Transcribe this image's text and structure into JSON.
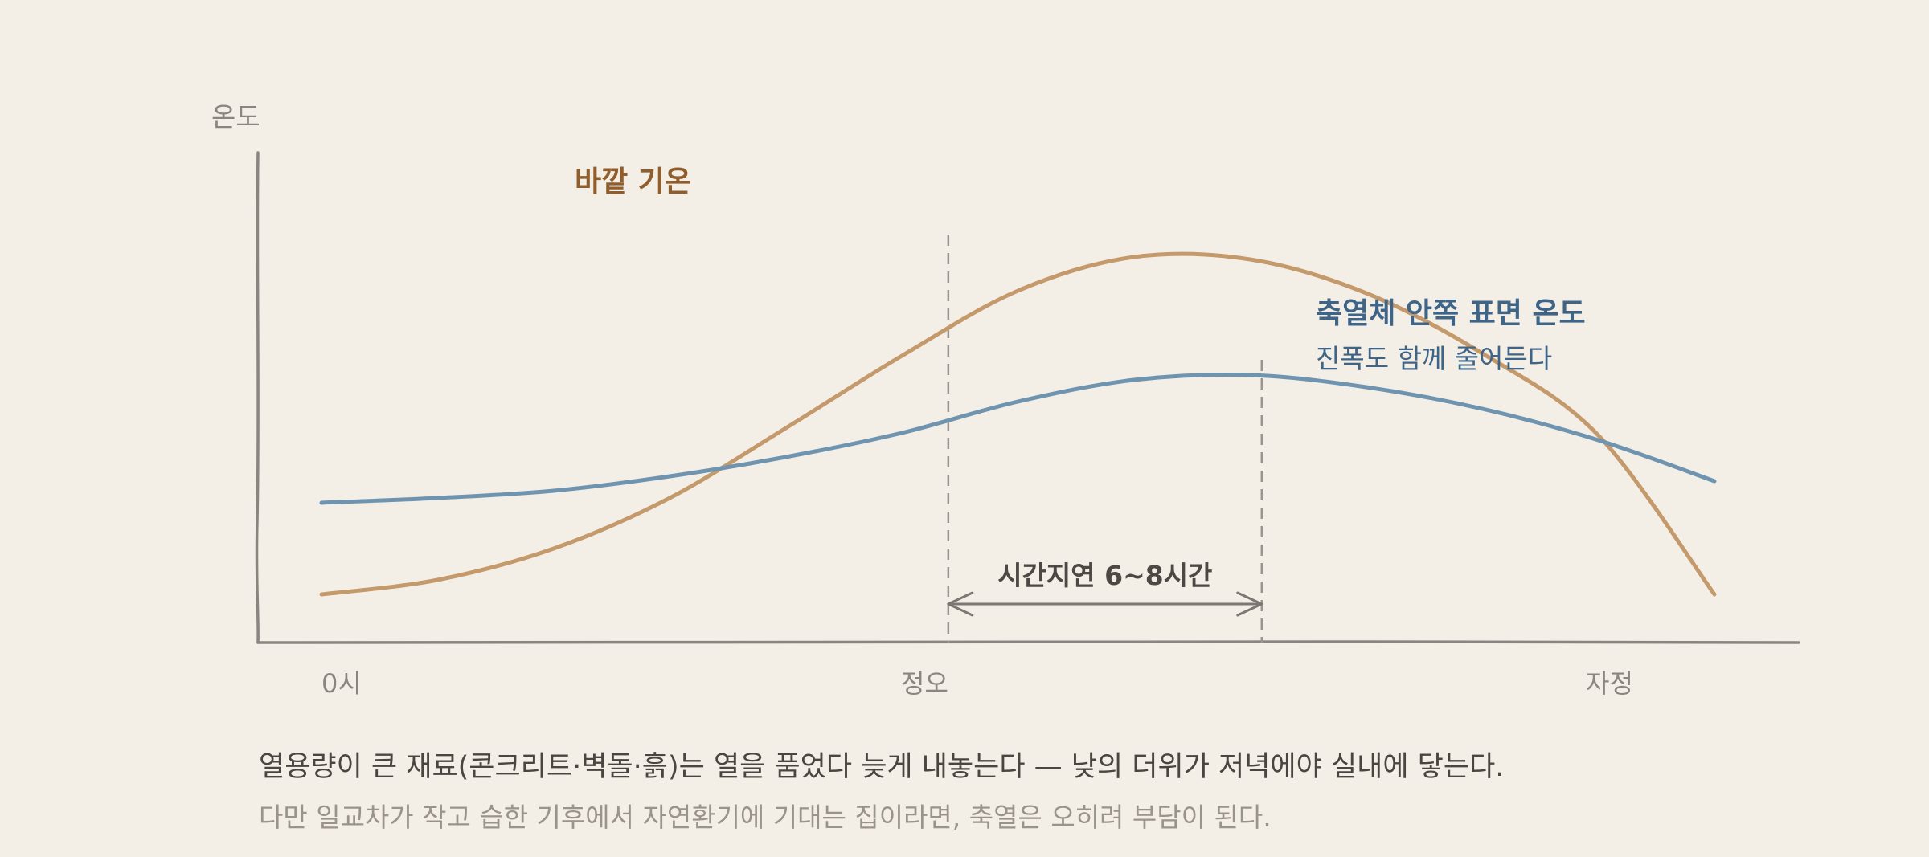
{
  "chart_data": {
    "type": "line",
    "ylabel": "온도",
    "x_ticks": [
      "0시",
      "정오",
      "자정"
    ],
    "series": [
      {
        "name": "바깥 기온",
        "color": "#c49a6c",
        "label_color": "#8f5e2c",
        "x": [
          0,
          2,
          4,
          6,
          8,
          10,
          12,
          14,
          16,
          18,
          20,
          22,
          24
        ],
        "values": [
          10,
          13,
          19.5,
          30,
          44.5,
          59.5,
          73,
          80,
          79.5,
          72.5,
          60,
          43,
          10
        ]
      },
      {
        "name": "축열체 안쪽 표면 온도",
        "subtitle": "진폭도 함께 줄어든다",
        "color": "#6f94b0",
        "label_color": "#3e6587",
        "x": [
          0,
          2,
          4,
          6,
          8,
          10,
          12,
          14,
          16,
          18,
          20,
          22,
          24
        ],
        "values": [
          29,
          30,
          31.5,
          34.5,
          38.5,
          43.5,
          50,
          54.5,
          55.5,
          53,
          48.5,
          42,
          33.5
        ]
      }
    ],
    "annotation": {
      "text": "시간지연 6~8시간",
      "from_hour": 10.8,
      "to_hour": 16.2
    }
  },
  "caption": {
    "main": "열용량이 큰 재료(콘크리트·벽돌·흙)는 열을 품었다 늦게 내놓는다 — 낮의 더위가 저녁에야 실내에 닿는다.",
    "sub": "다만 일교차가 작고 습한 기후에서 자연환기에 기대는 집이라면, 축열은 오히려 부담이 된다."
  }
}
